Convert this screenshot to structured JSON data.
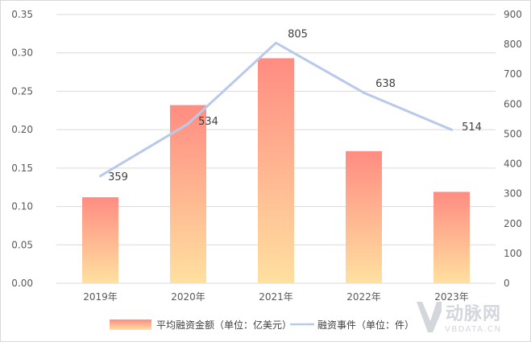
{
  "chart_data": {
    "type": "bar",
    "categories": [
      "2019年",
      "2020年",
      "2021年",
      "2022年",
      "2023年"
    ],
    "series": [
      {
        "name": "平均融资金额（单位：亿美元）",
        "type": "bar",
        "axis": "left",
        "values": [
          0.112,
          0.232,
          0.293,
          0.172,
          0.119
        ]
      },
      {
        "name": "融资事件（单位：件）",
        "type": "line",
        "axis": "right",
        "values": [
          359,
          534,
          805,
          638,
          514
        ],
        "labels": [
          "359",
          "534",
          "805",
          "638",
          "514"
        ]
      }
    ],
    "y_left": {
      "ylim": [
        0,
        0.35
      ],
      "ticks": [
        "0.00",
        "0.05",
        "0.10",
        "0.15",
        "0.20",
        "0.25",
        "0.30",
        "0.35"
      ]
    },
    "y_right": {
      "ylim": [
        0,
        900
      ],
      "ticks": [
        "0",
        "100",
        "200",
        "300",
        "400",
        "500",
        "600",
        "700",
        "800",
        "900"
      ]
    },
    "legend": [
      "平均融资金额（单位：亿美元）",
      "融资事件（单位：件）"
    ],
    "legend_position": "bottom",
    "grid": true,
    "colors": {
      "bar_top": "#ff8c82",
      "bar_bottom": "#ffe0a0",
      "line": "#b8c9ea",
      "grid": "#d9d9d9",
      "tick": "#595959"
    }
  },
  "watermark": {
    "text": "动脉网",
    "sub": "VBDATA.CN"
  }
}
